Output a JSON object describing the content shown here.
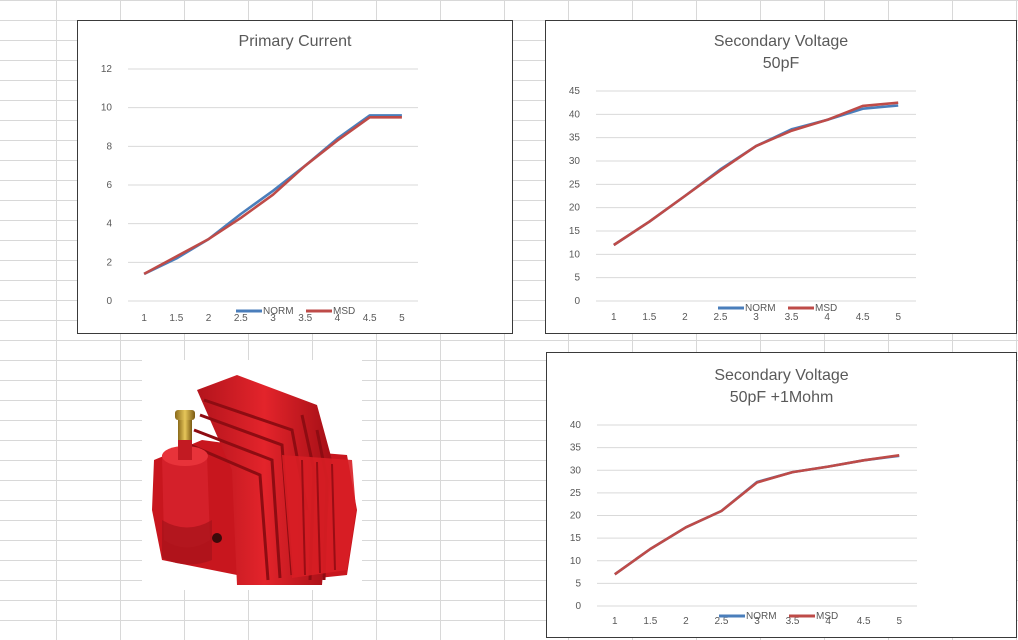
{
  "colors": {
    "norm": "#4a7ebb",
    "msd": "#be4b48",
    "grid": "#d9d9d9",
    "text": "#595959"
  },
  "chart_data": [
    {
      "type": "line",
      "title_lines": [
        "Primary Current"
      ],
      "categories": [
        "1",
        "1.5",
        "2",
        "2.5",
        "3",
        "3.5",
        "4",
        "4.5",
        "5"
      ],
      "ylim": [
        0,
        12
      ],
      "yticks": [
        "0",
        "2",
        "4",
        "6",
        "8",
        "10",
        "12"
      ],
      "grid": true,
      "legend_position": "bottom",
      "series": [
        {
          "name": "NORM",
          "values": [
            1.4,
            2.2,
            3.2,
            4.5,
            5.7,
            7.0,
            8.4,
            9.6,
            9.6
          ]
        },
        {
          "name": "MSD",
          "values": [
            1.4,
            2.3,
            3.2,
            4.3,
            5.5,
            7.0,
            8.3,
            9.5,
            9.5
          ]
        }
      ]
    },
    {
      "type": "line",
      "title_lines": [
        "Secondary Voltage",
        "50pF"
      ],
      "categories": [
        "1",
        "1.5",
        "2",
        "2.5",
        "3",
        "3.5",
        "4",
        "4.5",
        "5"
      ],
      "ylim": [
        0,
        45
      ],
      "yticks": [
        "0",
        "5",
        "10",
        "15",
        "20",
        "25",
        "30",
        "35",
        "40",
        "45"
      ],
      "grid": true,
      "legend_position": "bottom",
      "series": [
        {
          "name": "NORM",
          "values": [
            12,
            17,
            22.5,
            28.2,
            33.2,
            36.8,
            38.8,
            41.2,
            41.9
          ]
        },
        {
          "name": "MSD",
          "values": [
            12,
            17,
            22.5,
            28.0,
            33.2,
            36.5,
            38.8,
            41.8,
            42.5
          ]
        }
      ]
    },
    {
      "type": "line",
      "title_lines": [
        "Secondary Voltage",
        "50pF +1Mohm"
      ],
      "categories": [
        "1",
        "1.5",
        "2",
        "2.5",
        "3",
        "3.5",
        "4",
        "4.5",
        "5"
      ],
      "ylim": [
        0,
        40
      ],
      "yticks": [
        "0",
        "5",
        "10",
        "15",
        "20",
        "25",
        "30",
        "35",
        "40"
      ],
      "grid": true,
      "legend_position": "bottom",
      "series": [
        {
          "name": "NORM",
          "values": [
            7,
            12.6,
            17.4,
            21.0,
            27.4,
            29.6,
            30.8,
            32.2,
            33.2
          ]
        },
        {
          "name": "MSD",
          "values": [
            7,
            12.6,
            17.4,
            21.0,
            27.3,
            29.6,
            30.8,
            32.2,
            33.3
          ]
        }
      ]
    }
  ]
}
